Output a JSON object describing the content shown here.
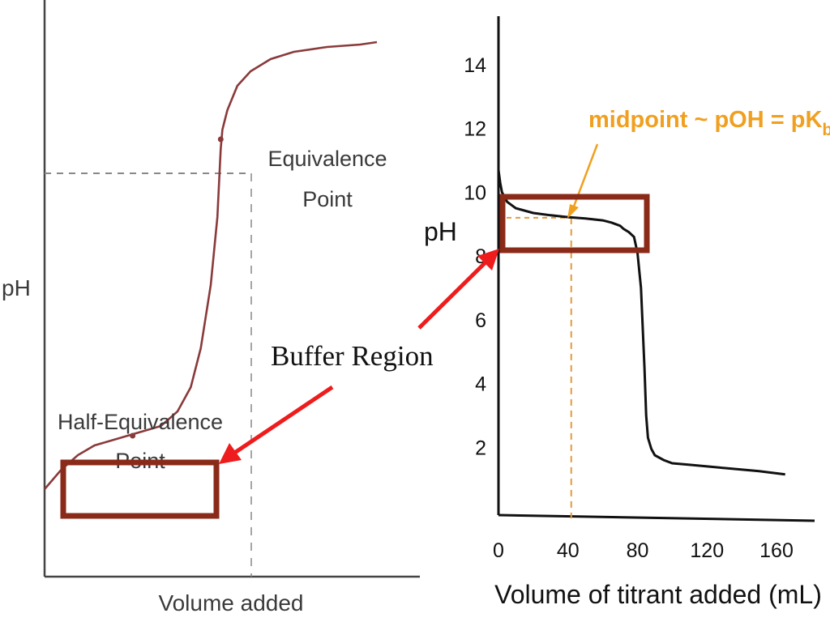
{
  "colors": {
    "curve_left": "#8a3a3a",
    "box_border": "#8a2b1a",
    "arrow": "#ee1c1c",
    "midpoint_text": "#f0a020",
    "dashed_orange": "#e39b3b",
    "dashed_gray": "#888888",
    "axis": "#222222"
  },
  "annotation": {
    "buffer_region": "Buffer Region"
  },
  "chart_data": [
    {
      "type": "line",
      "title": "",
      "xlabel": "Volume added",
      "ylabel": "pH",
      "grid": false,
      "annotations": {
        "equivalence_line1": "Equivalence",
        "equivalence_line2": "Point",
        "half_equivalence_line1": "Half-Equivalence",
        "half_equivalence_line2": "Point"
      },
      "note": "qualitative curve, unlabeled axes",
      "series": [
        {
          "x": [
            0,
            0.05,
            0.1,
            0.15,
            0.2,
            0.25,
            0.3,
            0.35,
            0.4,
            0.44,
            0.47,
            0.5,
            0.52,
            0.53,
            0.535,
            0.55,
            0.58,
            0.62,
            0.68,
            0.75,
            0.85,
            0.95,
            1.0
          ],
          "y": [
            0.08,
            0.12,
            0.15,
            0.17,
            0.18,
            0.19,
            0.2,
            0.21,
            0.24,
            0.29,
            0.37,
            0.5,
            0.64,
            0.78,
            0.82,
            0.86,
            0.91,
            0.94,
            0.965,
            0.98,
            0.99,
            0.995,
            1.0
          ]
        }
      ],
      "points": {
        "equivalence": {
          "x": 0.53,
          "y": 0.8
        },
        "half_equivalence": {
          "x": 0.265,
          "y": 0.19
        }
      }
    },
    {
      "type": "line",
      "title": "",
      "xlabel": "Volume of titrant added (mL)",
      "ylabel": "pH",
      "xlim": [
        0,
        170
      ],
      "ylim": [
        0,
        15
      ],
      "x_ticks": [
        "0",
        "40",
        "80",
        "120",
        "160"
      ],
      "y_ticks": [
        "2",
        "4",
        "6",
        "8",
        "10",
        "12",
        "14"
      ],
      "grid": false,
      "annotation": {
        "prefix": "midpoint ~ pOH = pK",
        "subscript": "b"
      },
      "midpoint": {
        "x": 40,
        "y": 9.2
      },
      "series": [
        {
          "x": [
            0,
            1,
            2,
            5,
            10,
            20,
            30,
            40,
            50,
            60,
            65,
            70,
            72,
            75,
            78,
            80,
            82,
            84,
            85,
            86,
            88,
            90,
            95,
            100,
            110,
            130,
            150,
            165
          ],
          "y": [
            10.7,
            10.3,
            10.0,
            9.7,
            9.5,
            9.35,
            9.28,
            9.22,
            9.18,
            9.12,
            9.05,
            8.95,
            8.85,
            8.75,
            8.6,
            8.1,
            7.0,
            4.5,
            3.0,
            2.3,
            1.95,
            1.75,
            1.6,
            1.5,
            1.45,
            1.35,
            1.25,
            1.15
          ]
        }
      ]
    }
  ]
}
